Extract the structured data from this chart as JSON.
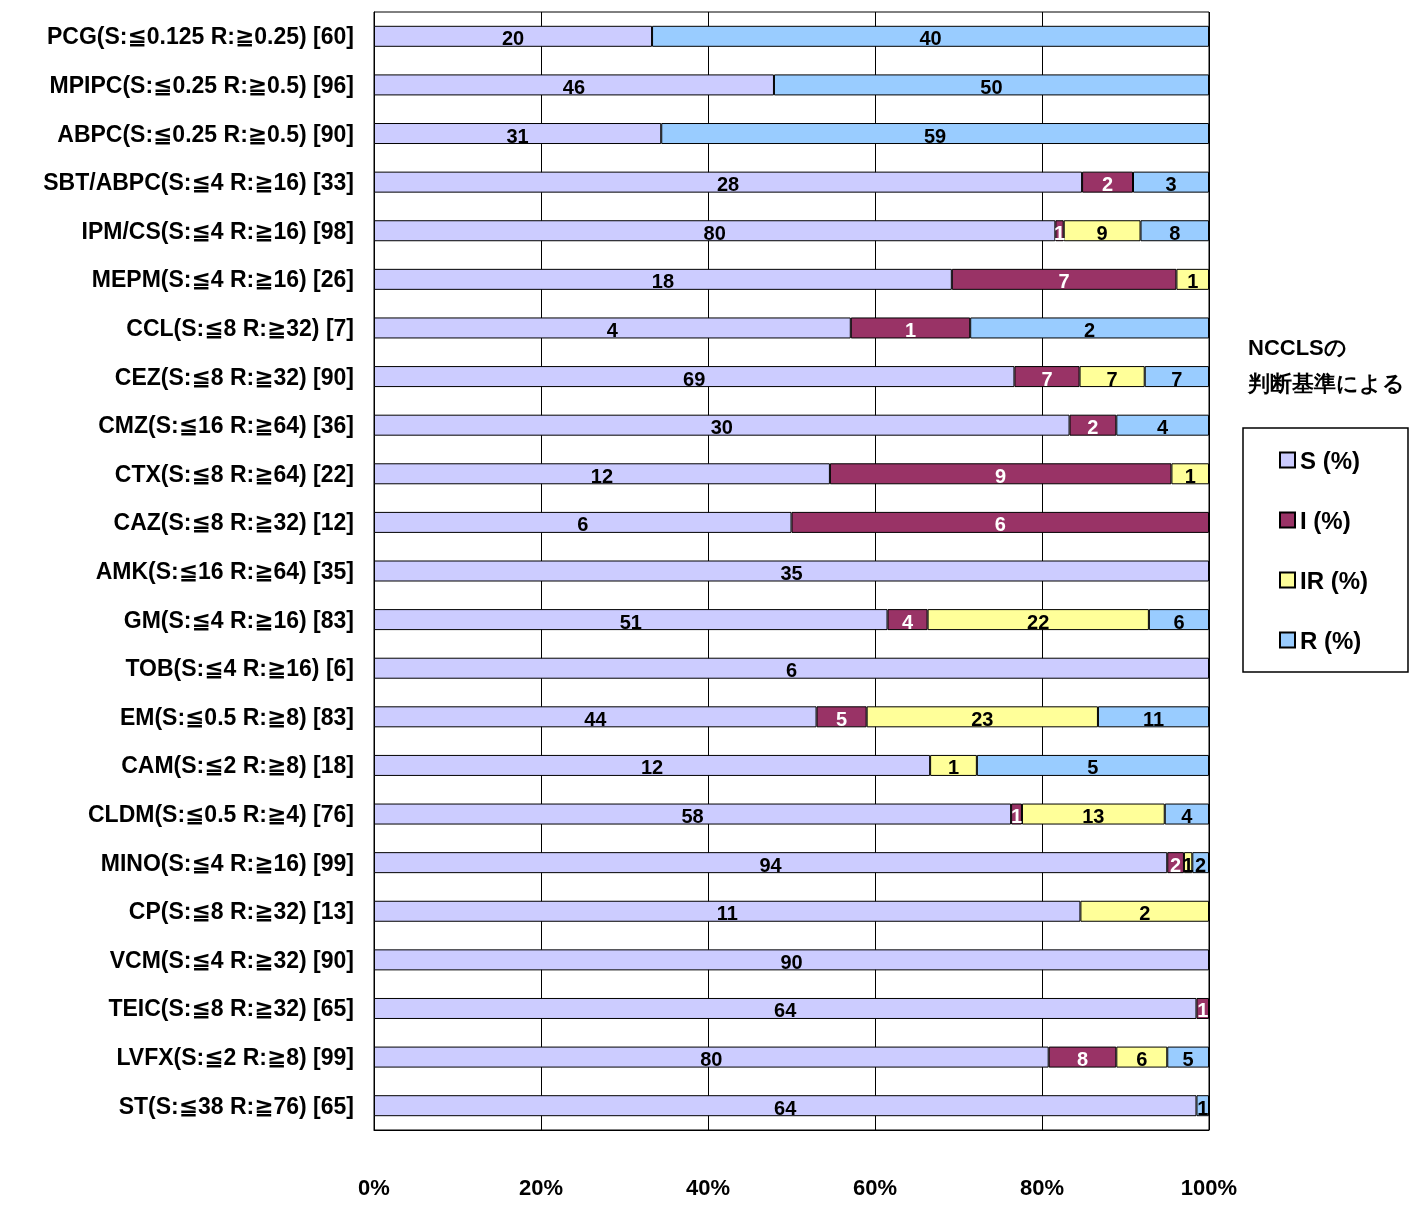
{
  "chart_data": {
    "type": "bar",
    "orientation": "horizontal",
    "stacked": true,
    "legend_title": "NCCLSの判断基準による",
    "categories": [
      "PCG(S:≦0.125 R:≧0.25) [60]",
      "MPIPC(S:≦0.25 R:≧0.5) [96]",
      "ABPC(S:≦0.25 R:≧0.5) [90]",
      "SBT/ABPC(S:≦4 R:≧16) [33]",
      "IPM/CS(S:≦4 R:≧16) [98]",
      "MEPM(S:≦4 R:≧16) [26]",
      "CCL(S:≦8 R:≧32) [7]",
      "CEZ(S:≦8 R:≧32) [90]",
      "CMZ(S:≦16 R:≧64) [36]",
      "CTX(S:≦8 R:≧64) [22]",
      "CAZ(S:≦8 R:≧32) [12]",
      "AMK(S:≦16 R:≧64) [35]",
      "GM(S:≦4 R:≧16) [83]",
      "TOB(S:≦4 R:≧16) [6]",
      "EM(S:≦0.5 R:≧8) [83]",
      "CAM(S:≦2 R:≧8) [18]",
      "CLDM(S:≦0.5 R:≧4) [76]",
      "MINO(S:≦4 R:≧16) [99]",
      "CP(S:≦8 R:≧32) [13]",
      "VCM(S:≦4 R:≧32) [90]",
      "TEIC(S:≦8 R:≧32) [65]",
      "LVFX(S:≦2 R:≧8) [99]",
      "ST(S:≦38 R:≧76) [65]"
    ],
    "series": [
      {
        "name": "S (%)",
        "color": "#ccccff",
        "values": [
          33.3,
          47.9,
          34.4,
          84.8,
          81.6,
          69.2,
          57.1,
          76.7,
          83.3,
          54.6,
          50,
          100,
          61.5,
          100,
          53.0,
          66.6,
          76.3,
          95.0,
          84.6,
          100,
          98.5,
          80.8,
          98.5
        ]
      },
      {
        "name": "I (%)",
        "color": "#993366",
        "values": [
          null,
          null,
          null,
          6.1,
          1.0,
          26.9,
          14.3,
          7.8,
          5.6,
          40.9,
          50,
          null,
          4.8,
          null,
          6.0,
          null,
          1.3,
          2.0,
          null,
          null,
          1.5,
          8.1,
          null
        ]
      },
      {
        "name": "IR (%)",
        "color": "#ffff99",
        "values": [
          null,
          null,
          null,
          null,
          9.2,
          3.9,
          null,
          7.8,
          null,
          4.5,
          null,
          null,
          26.5,
          null,
          27.7,
          5.6,
          17.1,
          1.0,
          15.4,
          null,
          null,
          6.1,
          null
        ]
      },
      {
        "name": "R (%)",
        "color": "#99ccff",
        "values": [
          66.7,
          52.1,
          65.6,
          9.1,
          8.2,
          null,
          28.6,
          7.7,
          11.1,
          null,
          null,
          null,
          7.2,
          null,
          13.3,
          27.8,
          5.3,
          2.0,
          null,
          null,
          null,
          5.0,
          1.5
        ]
      }
    ],
    "annotations": [
      "20",
      "40",
      "46",
      "50",
      "31",
      "59",
      "28",
      "2",
      "3",
      "80",
      "1",
      "9",
      "8",
      "18",
      "7",
      "1",
      "4",
      "1",
      "2",
      "69",
      "7",
      "7",
      "7",
      "30",
      "2",
      "4",
      "12",
      "9",
      "1",
      "6",
      "6",
      "35",
      "51",
      "4",
      "22",
      "6",
      "6",
      "44",
      "5",
      "23",
      "11",
      "12",
      "1",
      "5",
      "58",
      "1",
      "13",
      "4",
      "94",
      "2",
      "1",
      "2",
      "11",
      "2",
      "90",
      "64",
      "1",
      "80",
      "8",
      "6",
      "5",
      "64",
      "1"
    ],
    "xlim": [
      0,
      100
    ],
    "xticks": [
      {
        "value": 0,
        "label": "0%"
      },
      {
        "value": 20,
        "label": "20%"
      },
      {
        "value": 40,
        "label": "40%"
      },
      {
        "value": 60,
        "label": "60%"
      },
      {
        "value": 80,
        "label": "80%"
      },
      {
        "value": 100,
        "label": "100%"
      }
    ],
    "grid": "x",
    "legend": "right"
  }
}
